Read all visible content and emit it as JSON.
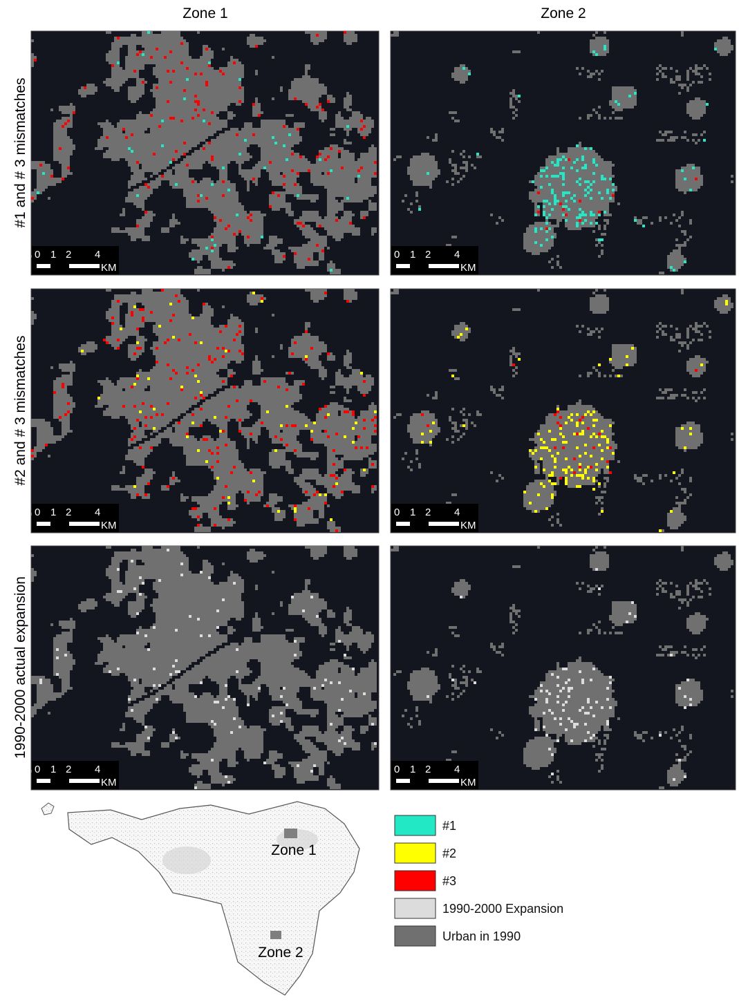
{
  "columns": [
    "Zone 1",
    "Zone 2"
  ],
  "rows": [
    "#1 and # 3 mismatches",
    "#2 and # 3 mismatches",
    "1990-2000 actual expansion"
  ],
  "scale_bar": {
    "labels": [
      "0",
      "1",
      "2",
      "4"
    ],
    "unit": "KM"
  },
  "inset": {
    "labels": [
      "Zone 1",
      "Zone 2"
    ]
  },
  "legend": [
    {
      "label": "#1",
      "color": "#22e8c6"
    },
    {
      "label": "#2",
      "color": "#ffff00"
    },
    {
      "label": "#3",
      "color": "#ff0000"
    },
    {
      "label": "1990-2000 Expansion",
      "color": "#dcdcdc"
    },
    {
      "label": "Urban in 1990",
      "color": "#707070"
    }
  ]
}
